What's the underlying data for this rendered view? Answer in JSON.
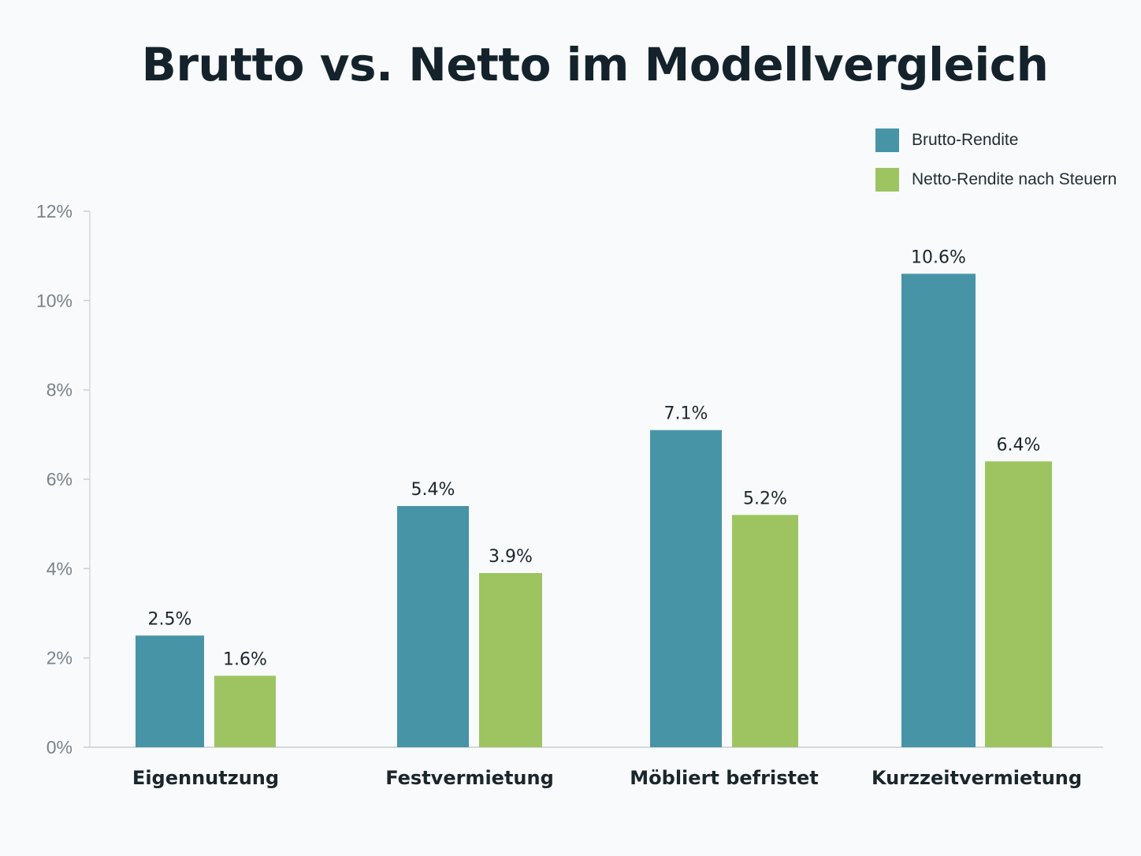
{
  "chart_data": {
    "type": "bar",
    "title": "Brutto vs. Netto im Modellvergleich",
    "categories": [
      "Eigennutzung",
      "Festvermietung",
      "Möbliert befristet",
      "Kurzzeitvermietung"
    ],
    "series": [
      {
        "name": "Brutto-Rendite",
        "color": "#4794a7",
        "values": [
          2.5,
          5.4,
          7.1,
          10.6
        ],
        "labels": [
          "2.5%",
          "5.4%",
          "7.1%",
          "10.6%"
        ]
      },
      {
        "name": "Netto-Rendite nach Steuern",
        "color": "#9ec462",
        "values": [
          1.6,
          3.9,
          5.2,
          6.4
        ],
        "labels": [
          "1.6%",
          "3.9%",
          "5.2%",
          "6.4%"
        ]
      }
    ],
    "ylim": [
      0,
      12
    ],
    "yticks": [
      0,
      2,
      4,
      6,
      8,
      10,
      12
    ],
    "ytick_labels": [
      "0%",
      "2%",
      "4%",
      "6%",
      "8%",
      "10%",
      "12%"
    ],
    "xlabel": "",
    "ylabel": "",
    "legend_position": "top-right",
    "grid": false
  }
}
